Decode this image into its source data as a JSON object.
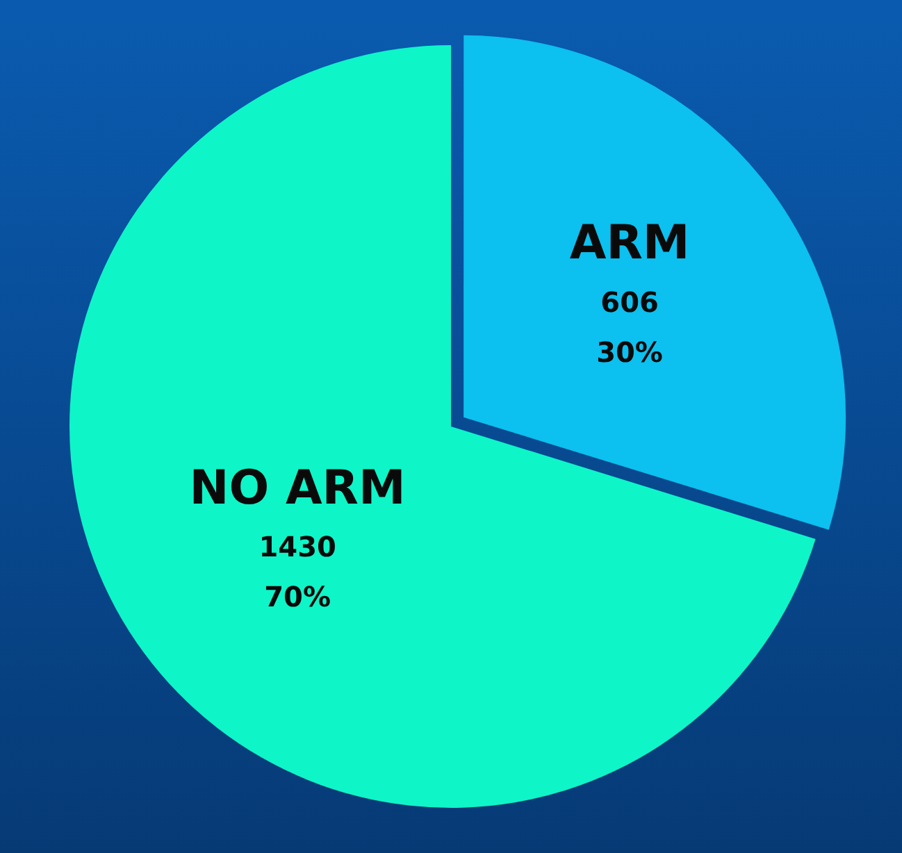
{
  "chart_data": {
    "type": "pie",
    "categories": [
      "ARM",
      "NO ARM"
    ],
    "values": [
      606,
      1430
    ],
    "colors": [
      "#0cc0ef",
      "#0ef5c8"
    ],
    "value_labels": [
      "606\n30%",
      "1430\n70%"
    ],
    "legend": false
  }
}
